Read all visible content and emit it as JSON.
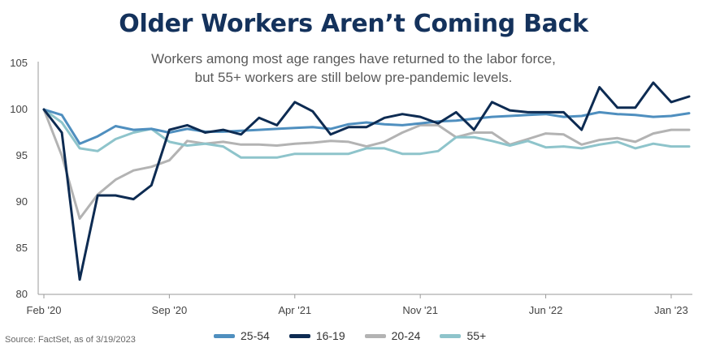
{
  "header": {
    "title": "Older Workers Aren’t Coming Back",
    "subtitle_lines": [
      "Workers among most age ranges have returned to the labor force,",
      "but 55+ workers are still below pre-pandemic levels."
    ]
  },
  "source": "Source: FactSet, as of 3/19/2023",
  "chart_data": {
    "type": "line",
    "title": "Older Workers Aren’t Coming Back",
    "x_labels": [
      "Feb '20",
      "Sep '20",
      "Apr '21",
      "Nov '21",
      "Jun '22",
      "Jan '23"
    ],
    "x_label_indices": [
      0,
      7,
      14,
      21,
      28,
      35
    ],
    "x": [
      "Feb 2020",
      "Mar 2020",
      "Apr 2020",
      "May 2020",
      "Jun 2020",
      "Jul 2020",
      "Aug 2020",
      "Sep 2020",
      "Oct 2020",
      "Nov 2020",
      "Dec 2020",
      "Jan 2021",
      "Feb 2021",
      "Mar 2021",
      "Apr 2021",
      "May 2021",
      "Jun 2021",
      "Jul 2021",
      "Aug 2021",
      "Sep 2021",
      "Oct 2021",
      "Nov 2021",
      "Dec 2021",
      "Jan 2022",
      "Feb 2022",
      "Mar 2022",
      "Apr 2022",
      "May 2022",
      "Jun 2022",
      "Jul 2022",
      "Aug 2022",
      "Sep 2022",
      "Oct 2022",
      "Nov 2022",
      "Dec 2022",
      "Jan 2023",
      "Feb 2023"
    ],
    "y_ticks": [
      80,
      85,
      90,
      95,
      100,
      105
    ],
    "ylim": [
      80,
      105
    ],
    "grid": false,
    "legend_position": "bottom",
    "series": [
      {
        "name": "25-54",
        "color": "#4f8fbf",
        "values": [
          100.0,
          99.4,
          96.3,
          97.1,
          98.2,
          97.8,
          97.9,
          97.5,
          97.9,
          97.6,
          97.6,
          97.7,
          97.8,
          97.9,
          98.0,
          98.1,
          97.9,
          98.4,
          98.6,
          98.4,
          98.3,
          98.5,
          98.7,
          98.8,
          99.0,
          99.2,
          99.3,
          99.4,
          99.5,
          99.2,
          99.3,
          99.7,
          99.5,
          99.4,
          99.2,
          99.3,
          99.6
        ]
      },
      {
        "name": "16-19",
        "color": "#0d2b52",
        "values": [
          100.0,
          97.5,
          81.6,
          90.7,
          90.7,
          90.3,
          91.8,
          97.8,
          98.3,
          97.5,
          97.8,
          97.3,
          99.1,
          98.3,
          100.8,
          99.8,
          97.3,
          98.1,
          98.1,
          99.1,
          99.5,
          99.2,
          98.5,
          99.7,
          97.8,
          100.8,
          99.9,
          99.7,
          99.7,
          99.7,
          97.8,
          102.4,
          100.2,
          100.2,
          102.9,
          100.8,
          101.4
        ]
      },
      {
        "name": "20-24",
        "color": "#b3b3b3",
        "values": [
          100.0,
          95.0,
          88.2,
          90.8,
          92.4,
          93.4,
          93.8,
          94.5,
          96.6,
          96.3,
          96.5,
          96.2,
          96.2,
          96.1,
          96.3,
          96.4,
          96.6,
          96.5,
          96.0,
          96.5,
          97.5,
          98.3,
          98.3,
          97.0,
          97.5,
          97.5,
          96.2,
          96.8,
          97.4,
          97.3,
          96.2,
          96.7,
          96.9,
          96.5,
          97.4,
          97.8,
          97.8
        ]
      },
      {
        "name": "55+",
        "color": "#8ec4cb",
        "values": [
          100.0,
          98.6,
          95.8,
          95.5,
          96.8,
          97.5,
          97.9,
          96.5,
          96.1,
          96.3,
          96.0,
          94.8,
          94.8,
          94.8,
          95.2,
          95.2,
          95.2,
          95.2,
          95.8,
          95.8,
          95.2,
          95.2,
          95.5,
          97.0,
          97.0,
          96.6,
          96.1,
          96.6,
          95.9,
          96.0,
          95.8,
          96.2,
          96.5,
          95.8,
          96.3,
          96.0,
          96.0
        ]
      }
    ]
  }
}
